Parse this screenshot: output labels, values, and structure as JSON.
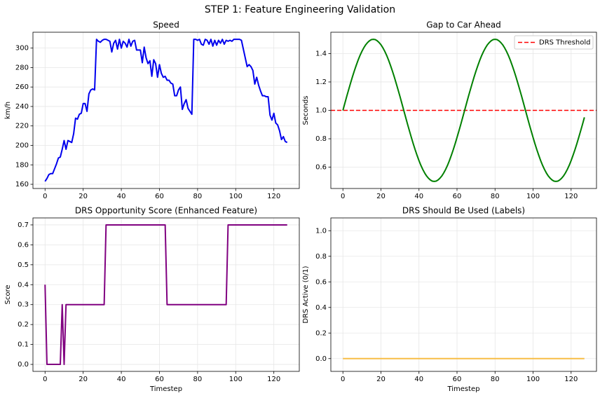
{
  "suptitle": "STEP 1: Feature Engineering Validation",
  "chart_data": [
    {
      "type": "line",
      "title": "Speed",
      "ylabel": "km/h",
      "color": "#0000ee",
      "grid": true,
      "x": [
        0,
        1,
        2,
        3,
        4,
        5,
        6,
        7,
        8,
        9,
        10,
        11,
        12,
        13,
        14,
        15,
        16,
        17,
        18,
        19,
        20,
        21,
        22,
        23,
        24,
        25,
        26,
        27,
        28,
        29,
        30,
        31,
        32,
        33,
        34,
        35,
        36,
        37,
        38,
        39,
        40,
        41,
        42,
        43,
        44,
        45,
        46,
        47,
        48,
        49,
        50,
        51,
        52,
        53,
        54,
        55,
        56,
        57,
        58,
        59,
        60,
        61,
        62,
        63,
        64,
        65,
        66,
        67,
        68,
        69,
        70,
        71,
        72,
        73,
        74,
        75,
        76,
        77,
        78,
        79,
        80,
        81,
        82,
        83,
        84,
        85,
        86,
        87,
        88,
        89,
        90,
        91,
        92,
        93,
        94,
        95,
        96,
        97,
        98,
        99,
        100,
        101,
        102,
        103,
        104,
        105,
        106,
        107,
        108,
        109,
        110,
        111,
        112,
        113,
        114,
        115,
        116,
        117,
        118,
        119,
        120,
        121,
        122,
        123,
        124,
        125,
        126,
        127
      ],
      "values": [
        163,
        166,
        170,
        171,
        171,
        176,
        181,
        187,
        188,
        196,
        205,
        196,
        205,
        204,
        203,
        212,
        228,
        227,
        232,
        233,
        243,
        243,
        235,
        253,
        257,
        258,
        257,
        309,
        307,
        306,
        308,
        309,
        309,
        308,
        307,
        296,
        305,
        308,
        299,
        309,
        300,
        307,
        305,
        301,
        309,
        302,
        307,
        308,
        298,
        298,
        298,
        285,
        301,
        290,
        284,
        287,
        271,
        288,
        284,
        270,
        283,
        274,
        270,
        271,
        267,
        267,
        264,
        263,
        251,
        251,
        257,
        260,
        237,
        243,
        247,
        238,
        235,
        232,
        309,
        309,
        308,
        309,
        304,
        303,
        309,
        308,
        304,
        309,
        302,
        308,
        303,
        308,
        305,
        309,
        304,
        308,
        307,
        308,
        307,
        309,
        309,
        309,
        309,
        308,
        299,
        290,
        281,
        283,
        281,
        277,
        263,
        270,
        262,
        256,
        251,
        251,
        250,
        250,
        231,
        226,
        233,
        223,
        221,
        215,
        206,
        209,
        204,
        203
      ],
      "xlim": [
        -6.35,
        133.35
      ],
      "xticks": [
        0,
        20,
        40,
        60,
        80,
        100,
        120
      ],
      "ylim": [
        155.7,
        316.3
      ],
      "yticks": [
        160,
        180,
        200,
        220,
        240,
        260,
        280,
        300
      ]
    },
    {
      "type": "line",
      "title": "Gap to Car Ahead",
      "ylabel": "Seconds",
      "color": "#008000",
      "grid": true,
      "legend": "upper right",
      "threshold": {
        "value": 1.0,
        "label": "DRS Threshold",
        "color": "#ff0000"
      },
      "x": [
        0,
        1,
        2,
        3,
        4,
        5,
        6,
        7,
        8,
        9,
        10,
        11,
        12,
        13,
        14,
        15,
        16,
        17,
        18,
        19,
        20,
        21,
        22,
        23,
        24,
        25,
        26,
        27,
        28,
        29,
        30,
        31,
        32,
        33,
        34,
        35,
        36,
        37,
        38,
        39,
        40,
        41,
        42,
        43,
        44,
        45,
        46,
        47,
        48,
        49,
        50,
        51,
        52,
        53,
        54,
        55,
        56,
        57,
        58,
        59,
        60,
        61,
        62,
        63,
        64,
        65,
        66,
        67,
        68,
        69,
        70,
        71,
        72,
        73,
        74,
        75,
        76,
        77,
        78,
        79,
        80,
        81,
        82,
        83,
        84,
        85,
        86,
        87,
        88,
        89,
        90,
        91,
        92,
        93,
        94,
        95,
        96,
        97,
        98,
        99,
        100,
        101,
        102,
        103,
        104,
        105,
        106,
        107,
        108,
        109,
        110,
        111,
        112,
        113,
        114,
        115,
        116,
        117,
        118,
        119,
        120,
        121,
        122,
        123,
        124,
        125,
        126,
        127
      ],
      "values": [
        1.0,
        1.049,
        1.098,
        1.145,
        1.191,
        1.236,
        1.278,
        1.317,
        1.354,
        1.387,
        1.416,
        1.441,
        1.462,
        1.478,
        1.49,
        1.498,
        1.5,
        1.498,
        1.49,
        1.478,
        1.462,
        1.441,
        1.416,
        1.387,
        1.354,
        1.317,
        1.278,
        1.236,
        1.191,
        1.145,
        1.098,
        1.049,
        1.0,
        0.951,
        0.902,
        0.855,
        0.809,
        0.764,
        0.722,
        0.683,
        0.646,
        0.613,
        0.584,
        0.559,
        0.538,
        0.522,
        0.51,
        0.502,
        0.5,
        0.502,
        0.51,
        0.522,
        0.538,
        0.559,
        0.584,
        0.613,
        0.646,
        0.683,
        0.722,
        0.764,
        0.809,
        0.855,
        0.902,
        0.951,
        1.0,
        1.049,
        1.098,
        1.145,
        1.191,
        1.236,
        1.278,
        1.317,
        1.354,
        1.387,
        1.416,
        1.441,
        1.462,
        1.478,
        1.49,
        1.498,
        1.5,
        1.498,
        1.49,
        1.478,
        1.462,
        1.441,
        1.416,
        1.387,
        1.354,
        1.317,
        1.278,
        1.236,
        1.191,
        1.145,
        1.098,
        1.049,
        1.0,
        0.951,
        0.902,
        0.855,
        0.809,
        0.764,
        0.722,
        0.683,
        0.646,
        0.613,
        0.584,
        0.559,
        0.538,
        0.522,
        0.51,
        0.502,
        0.5,
        0.502,
        0.51,
        0.522,
        0.538,
        0.559,
        0.584,
        0.613,
        0.646,
        0.683,
        0.722,
        0.764,
        0.809,
        0.855,
        0.902,
        0.951
      ],
      "xlim": [
        -6.35,
        133.35
      ],
      "xticks": [
        0,
        20,
        40,
        60,
        80,
        100,
        120
      ],
      "ylim": [
        0.45,
        1.55
      ],
      "yticks": [
        0.6,
        0.8,
        {
          "value": 1.0,
          "label": "1.0"
        },
        1.2,
        1.4
      ]
    },
    {
      "type": "line",
      "title": "DRS Opportunity Score (Enhanced Feature)",
      "xlabel": "Timestep",
      "ylabel": "Score",
      "color": "#800080",
      "grid": true,
      "x": [
        0,
        1,
        2,
        3,
        4,
        5,
        6,
        7,
        8,
        9,
        10,
        11,
        12,
        13,
        14,
        15,
        16,
        17,
        18,
        19,
        20,
        21,
        22,
        23,
        24,
        25,
        26,
        27,
        28,
        29,
        30,
        31,
        32,
        33,
        34,
        35,
        36,
        37,
        38,
        39,
        40,
        41,
        42,
        43,
        44,
        45,
        46,
        47,
        48,
        49,
        50,
        51,
        52,
        53,
        54,
        55,
        56,
        57,
        58,
        59,
        60,
        61,
        62,
        63,
        64,
        65,
        66,
        67,
        68,
        69,
        70,
        71,
        72,
        73,
        74,
        75,
        76,
        77,
        78,
        79,
        80,
        81,
        82,
        83,
        84,
        85,
        86,
        87,
        88,
        89,
        90,
        91,
        92,
        93,
        94,
        95,
        96,
        97,
        98,
        99,
        100,
        101,
        102,
        103,
        104,
        105,
        106,
        107,
        108,
        109,
        110,
        111,
        112,
        113,
        114,
        115,
        116,
        117,
        118,
        119,
        120,
        121,
        122,
        123,
        124,
        125,
        126,
        127
      ],
      "values": [
        0.4,
        0,
        0,
        0,
        0,
        0,
        0,
        0,
        0,
        0.3,
        0,
        0.3,
        0.3,
        0.3,
        0.3,
        0.3,
        0.3,
        0.3,
        0.3,
        0.3,
        0.3,
        0.3,
        0.3,
        0.3,
        0.3,
        0.3,
        0.3,
        0.3,
        0.3,
        0.3,
        0.3,
        0.3,
        0.7,
        0.7,
        0.7,
        0.7,
        0.7,
        0.7,
        0.7,
        0.7,
        0.7,
        0.7,
        0.7,
        0.7,
        0.7,
        0.7,
        0.7,
        0.7,
        0.7,
        0.7,
        0.7,
        0.7,
        0.7,
        0.7,
        0.7,
        0.7,
        0.7,
        0.7,
        0.7,
        0.7,
        0.7,
        0.7,
        0.7,
        0.7,
        0.3,
        0.3,
        0.3,
        0.3,
        0.3,
        0.3,
        0.3,
        0.3,
        0.3,
        0.3,
        0.3,
        0.3,
        0.3,
        0.3,
        0.3,
        0.3,
        0.3,
        0.3,
        0.3,
        0.3,
        0.3,
        0.3,
        0.3,
        0.3,
        0.3,
        0.3,
        0.3,
        0.3,
        0.3,
        0.3,
        0.3,
        0.3,
        0.7,
        0.7,
        0.7,
        0.7,
        0.7,
        0.7,
        0.7,
        0.7,
        0.7,
        0.7,
        0.7,
        0.7,
        0.7,
        0.7,
        0.7,
        0.7,
        0.7,
        0.7,
        0.7,
        0.7,
        0.7,
        0.7,
        0.7,
        0.7,
        0.7,
        0.7,
        0.7,
        0.7,
        0.7,
        0.7,
        0.7,
        0.7
      ],
      "xlim": [
        -6.35,
        133.35
      ],
      "xticks": [
        0,
        20,
        40,
        60,
        80,
        100,
        120
      ],
      "ylim": [
        -0.035,
        0.735
      ],
      "yticks": [
        {
          "value": 0,
          "label": "0.0"
        },
        0.1,
        0.2,
        0.3,
        0.4,
        0.5,
        0.6,
        0.7
      ]
    },
    {
      "type": "line",
      "title": "DRS Should Be Used (Labels)",
      "xlabel": "Timestep",
      "ylabel": "DRS Active (0/1)",
      "color": "#f7bd45",
      "grid": true,
      "x": [
        0,
        1,
        2,
        3,
        4,
        5,
        6,
        7,
        8,
        9,
        10,
        11,
        12,
        13,
        14,
        15,
        16,
        17,
        18,
        19,
        20,
        21,
        22,
        23,
        24,
        25,
        26,
        27,
        28,
        29,
        30,
        31,
        32,
        33,
        34,
        35,
        36,
        37,
        38,
        39,
        40,
        41,
        42,
        43,
        44,
        45,
        46,
        47,
        48,
        49,
        50,
        51,
        52,
        53,
        54,
        55,
        56,
        57,
        58,
        59,
        60,
        61,
        62,
        63,
        64,
        65,
        66,
        67,
        68,
        69,
        70,
        71,
        72,
        73,
        74,
        75,
        76,
        77,
        78,
        79,
        80,
        81,
        82,
        83,
        84,
        85,
        86,
        87,
        88,
        89,
        90,
        91,
        92,
        93,
        94,
        95,
        96,
        97,
        98,
        99,
        100,
        101,
        102,
        103,
        104,
        105,
        106,
        107,
        108,
        109,
        110,
        111,
        112,
        113,
        114,
        115,
        116,
        117,
        118,
        119,
        120,
        121,
        122,
        123,
        124,
        125,
        126,
        127
      ],
      "values": [
        0,
        0,
        0,
        0,
        0,
        0,
        0,
        0,
        0,
        0,
        0,
        0,
        0,
        0,
        0,
        0,
        0,
        0,
        0,
        0,
        0,
        0,
        0,
        0,
        0,
        0,
        0,
        0,
        0,
        0,
        0,
        0,
        0,
        0,
        0,
        0,
        0,
        0,
        0,
        0,
        0,
        0,
        0,
        0,
        0,
        0,
        0,
        0,
        0,
        0,
        0,
        0,
        0,
        0,
        0,
        0,
        0,
        0,
        0,
        0,
        0,
        0,
        0,
        0,
        0,
        0,
        0,
        0,
        0,
        0,
        0,
        0,
        0,
        0,
        0,
        0,
        0,
        0,
        0,
        0,
        0,
        0,
        0,
        0,
        0,
        0,
        0,
        0,
        0,
        0,
        0,
        0,
        0,
        0,
        0,
        0,
        0,
        0,
        0,
        0,
        0,
        0,
        0,
        0,
        0,
        0,
        0,
        0,
        0,
        0,
        0,
        0,
        0,
        0,
        0,
        0,
        0,
        0,
        0,
        0,
        0,
        0,
        0,
        0,
        0,
        0,
        0,
        0
      ],
      "xlim": [
        -6.35,
        133.35
      ],
      "xticks": [
        0,
        20,
        40,
        60,
        80,
        100,
        120
      ],
      "ylim": [
        -0.1,
        1.1
      ],
      "yticks": [
        {
          "value": 0,
          "label": "0.0"
        },
        0.2,
        0.4,
        0.6,
        0.8,
        {
          "value": 1,
          "label": "1.0"
        }
      ]
    }
  ]
}
